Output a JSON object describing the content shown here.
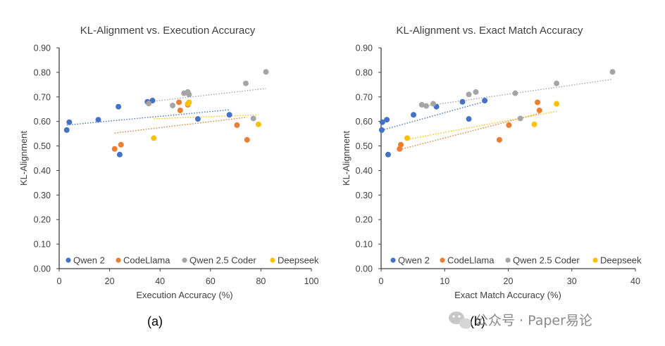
{
  "colors": {
    "Qwen 2": "#4472C4",
    "CodeLlama": "#ED7D31",
    "Qwen 2.5 Coder": "#A5A5A5",
    "Deepseek": "#FFC000",
    "axis": "#404040",
    "text": "#404040"
  },
  "watermark": {
    "text": "公众号 · Paper易论",
    "icon": "wechat-icon"
  },
  "chart_data": [
    {
      "type": "scatter",
      "panel_label": "(a)",
      "title": "KL-Alignment vs. Execution Accuracy",
      "xlabel": "Execution Accuracy (%)",
      "ylabel": "KL-Alignment",
      "xlim": [
        0,
        100
      ],
      "ylim": [
        0,
        0.9
      ],
      "x_ticks": [
        "0",
        "20",
        "40",
        "60",
        "80",
        "100"
      ],
      "y_ticks": [
        "0.00",
        "0.10",
        "0.20",
        "0.30",
        "0.40",
        "0.50",
        "0.60",
        "0.70",
        "0.80",
        "0.90"
      ],
      "grid": false,
      "trendlines": true,
      "legend_position": "bottom-inside",
      "series": [
        {
          "name": "Qwen 2",
          "points": [
            [
              3,
              0.565
            ],
            [
              4,
              0.597
            ],
            [
              15.5,
              0.607
            ],
            [
              23.5,
              0.66
            ],
            [
              24,
              0.465
            ],
            [
              35,
              0.68
            ],
            [
              37,
              0.685
            ],
            [
              55,
              0.61
            ],
            [
              67.5,
              0.627
            ]
          ]
        },
        {
          "name": "CodeLlama",
          "points": [
            [
              22,
              0.488
            ],
            [
              24.5,
              0.505
            ],
            [
              47.5,
              0.678
            ],
            [
              48,
              0.645
            ],
            [
              51,
              0.668
            ],
            [
              70.5,
              0.585
            ],
            [
              74.5,
              0.525
            ]
          ]
        },
        {
          "name": "Qwen 2.5 Coder",
          "points": [
            [
              35.5,
              0.673
            ],
            [
              45,
              0.665
            ],
            [
              49.5,
              0.715
            ],
            [
              51,
              0.72
            ],
            [
              51.5,
              0.71
            ],
            [
              74,
              0.755
            ],
            [
              77,
              0.612
            ],
            [
              82,
              0.802
            ]
          ]
        },
        {
          "name": "Deepseek",
          "points": [
            [
              37.5,
              0.532
            ],
            [
              51,
              0.672
            ],
            [
              51.5,
              0.678
            ],
            [
              79,
              0.588
            ]
          ]
        }
      ]
    },
    {
      "type": "scatter",
      "panel_label": "(b)",
      "title": "KL-Alignment vs. Exact Match Accuracy",
      "xlabel": "Exact Match Accuracy (%)",
      "ylabel": "KL-Alignment",
      "xlim": [
        0,
        40
      ],
      "ylim": [
        0,
        0.9
      ],
      "x_ticks": [
        "0",
        "10",
        "20",
        "30",
        "40"
      ],
      "y_ticks": [
        "0.00",
        "0.10",
        "0.20",
        "0.30",
        "0.40",
        "0.50",
        "0.60",
        "0.70",
        "0.80",
        "0.90"
      ],
      "grid": false,
      "trendlines": true,
      "legend_position": "bottom-inside",
      "series": [
        {
          "name": "Qwen 2",
          "points": [
            [
              0.1,
              0.565
            ],
            [
              0.2,
              0.597
            ],
            [
              0.9,
              0.607
            ],
            [
              1.1,
              0.465
            ],
            [
              5.1,
              0.627
            ],
            [
              8.7,
              0.66
            ],
            [
              12.8,
              0.68
            ],
            [
              13.8,
              0.61
            ],
            [
              16.3,
              0.685
            ]
          ]
        },
        {
          "name": "CodeLlama",
          "points": [
            [
              2.9,
              0.488
            ],
            [
              3.1,
              0.505
            ],
            [
              18.6,
              0.525
            ],
            [
              20.1,
              0.585
            ],
            [
              24.6,
              0.678
            ],
            [
              24.9,
              0.645
            ]
          ]
        },
        {
          "name": "Qwen 2.5 Coder",
          "points": [
            [
              6.4,
              0.668
            ],
            [
              7.1,
              0.663
            ],
            [
              8.2,
              0.672
            ],
            [
              13.8,
              0.71
            ],
            [
              14.9,
              0.72
            ],
            [
              21.1,
              0.715
            ],
            [
              21.9,
              0.612
            ],
            [
              27.6,
              0.755
            ],
            [
              36.4,
              0.802
            ]
          ]
        },
        {
          "name": "Deepseek",
          "points": [
            [
              4.1,
              0.532
            ],
            [
              24.1,
              0.588
            ],
            [
              27.6,
              0.672
            ]
          ]
        }
      ]
    }
  ]
}
